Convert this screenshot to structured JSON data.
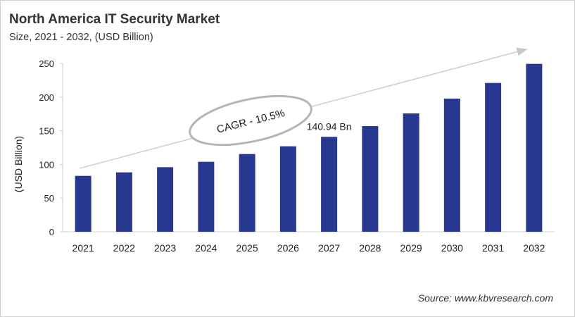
{
  "chart_data": {
    "type": "bar",
    "title": "North America IT Security Market",
    "subtitle": "Size, 2021 - 2032, (USD Billion)",
    "xlabel": "",
    "ylabel": "(USD Billion)",
    "ylim": [
      0,
      250
    ],
    "yticks": [
      0,
      50,
      100,
      150,
      200,
      250
    ],
    "categories": [
      "2021",
      "2022",
      "2023",
      "2024",
      "2025",
      "2026",
      "2027",
      "2028",
      "2029",
      "2030",
      "2031",
      "2032"
    ],
    "values": [
      83,
      88.2,
      95.9,
      103.9,
      115.4,
      126.9,
      140.94,
      156.9,
      175.7,
      197.7,
      221,
      249.3
    ],
    "bar_color": "#283891",
    "grid": false,
    "annotations": {
      "cagr": "CAGR - 10.5%",
      "data_label": "140.94 Bn",
      "data_label_category": "2027"
    },
    "source": "Source: www.kbvresearch.com"
  }
}
